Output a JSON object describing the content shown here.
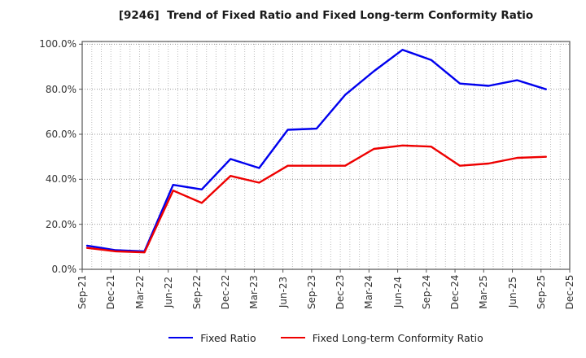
{
  "title": "[9246]  Trend of Fixed Ratio and Fixed Long-term Conformity Ratio",
  "colors": {
    "fixed_ratio_line": "#0000ee",
    "conformity_line": "#ee0000",
    "grid_major": "#999999",
    "grid_minor": "#bdbdbd",
    "axis_frame": "#555555",
    "text": "#333333"
  },
  "y_axis": {
    "tick_labels": [
      "100.0%",
      "80.0%",
      "60.0%",
      "40.0%",
      "20.0%",
      "0.0%"
    ],
    "tick_values": [
      100,
      80,
      60,
      40,
      20,
      0
    ]
  },
  "x_axis": {
    "tick_labels": [
      "Sep-21",
      "Dec-21",
      "Mar-22",
      "Jun-22",
      "Sep-22",
      "Dec-22",
      "Mar-23",
      "Jun-23",
      "Sep-23",
      "Dec-23",
      "Mar-24",
      "Jun-24",
      "Sep-24",
      "Dec-24",
      "Mar-25",
      "Jun-25",
      "Sep-25",
      "Dec-25"
    ]
  },
  "legend": {
    "items": [
      {
        "label": "Fixed Ratio",
        "color": "#0000ee"
      },
      {
        "label": "Fixed Long-term Conformity Ratio",
        "color": "#ee0000"
      }
    ]
  },
  "chart_data": {
    "type": "line",
    "title": "[9246]  Trend of Fixed Ratio and Fixed Long-term Conformity Ratio",
    "categories": [
      "Sep-21",
      "Dec-21",
      "Mar-22",
      "Jun-22",
      "Sep-22",
      "Dec-22",
      "Mar-23",
      "Jun-23",
      "Sep-23",
      "Dec-23",
      "Mar-24",
      "Jun-24",
      "Sep-24",
      "Dec-24",
      "Mar-25",
      "Jun-25",
      "Sep-25"
    ],
    "x_tick_labels_shown": [
      "Sep-21",
      "Dec-21",
      "Mar-22",
      "Jun-22",
      "Sep-22",
      "Dec-22",
      "Mar-23",
      "Jun-23",
      "Sep-23",
      "Dec-23",
      "Mar-24",
      "Jun-24",
      "Sep-24",
      "Dec-24",
      "Mar-25",
      "Jun-25",
      "Sep-25",
      "Dec-25"
    ],
    "series": [
      {
        "name": "Fixed Ratio",
        "color": "#0000ee",
        "values": [
          10.5,
          8.5,
          8.0,
          37.5,
          35.5,
          49.0,
          45.0,
          62.0,
          62.5,
          77.5,
          88.0,
          97.5,
          93.0,
          82.5,
          81.5,
          84.0,
          80.0
        ]
      },
      {
        "name": "Fixed Long-term Conformity Ratio",
        "color": "#ee0000",
        "values": [
          9.5,
          8.0,
          7.5,
          35.0,
          29.5,
          41.5,
          38.5,
          46.0,
          46.0,
          46.0,
          53.5,
          55.0,
          54.5,
          46.0,
          47.0,
          49.5,
          50.0
        ]
      }
    ],
    "ylim": [
      0,
      100
    ],
    "ytick_step": 20,
    "ytick_format": "percent_1dp",
    "grid": true,
    "minor_vertical_grid": "monthly",
    "legend_position": "bottom"
  }
}
